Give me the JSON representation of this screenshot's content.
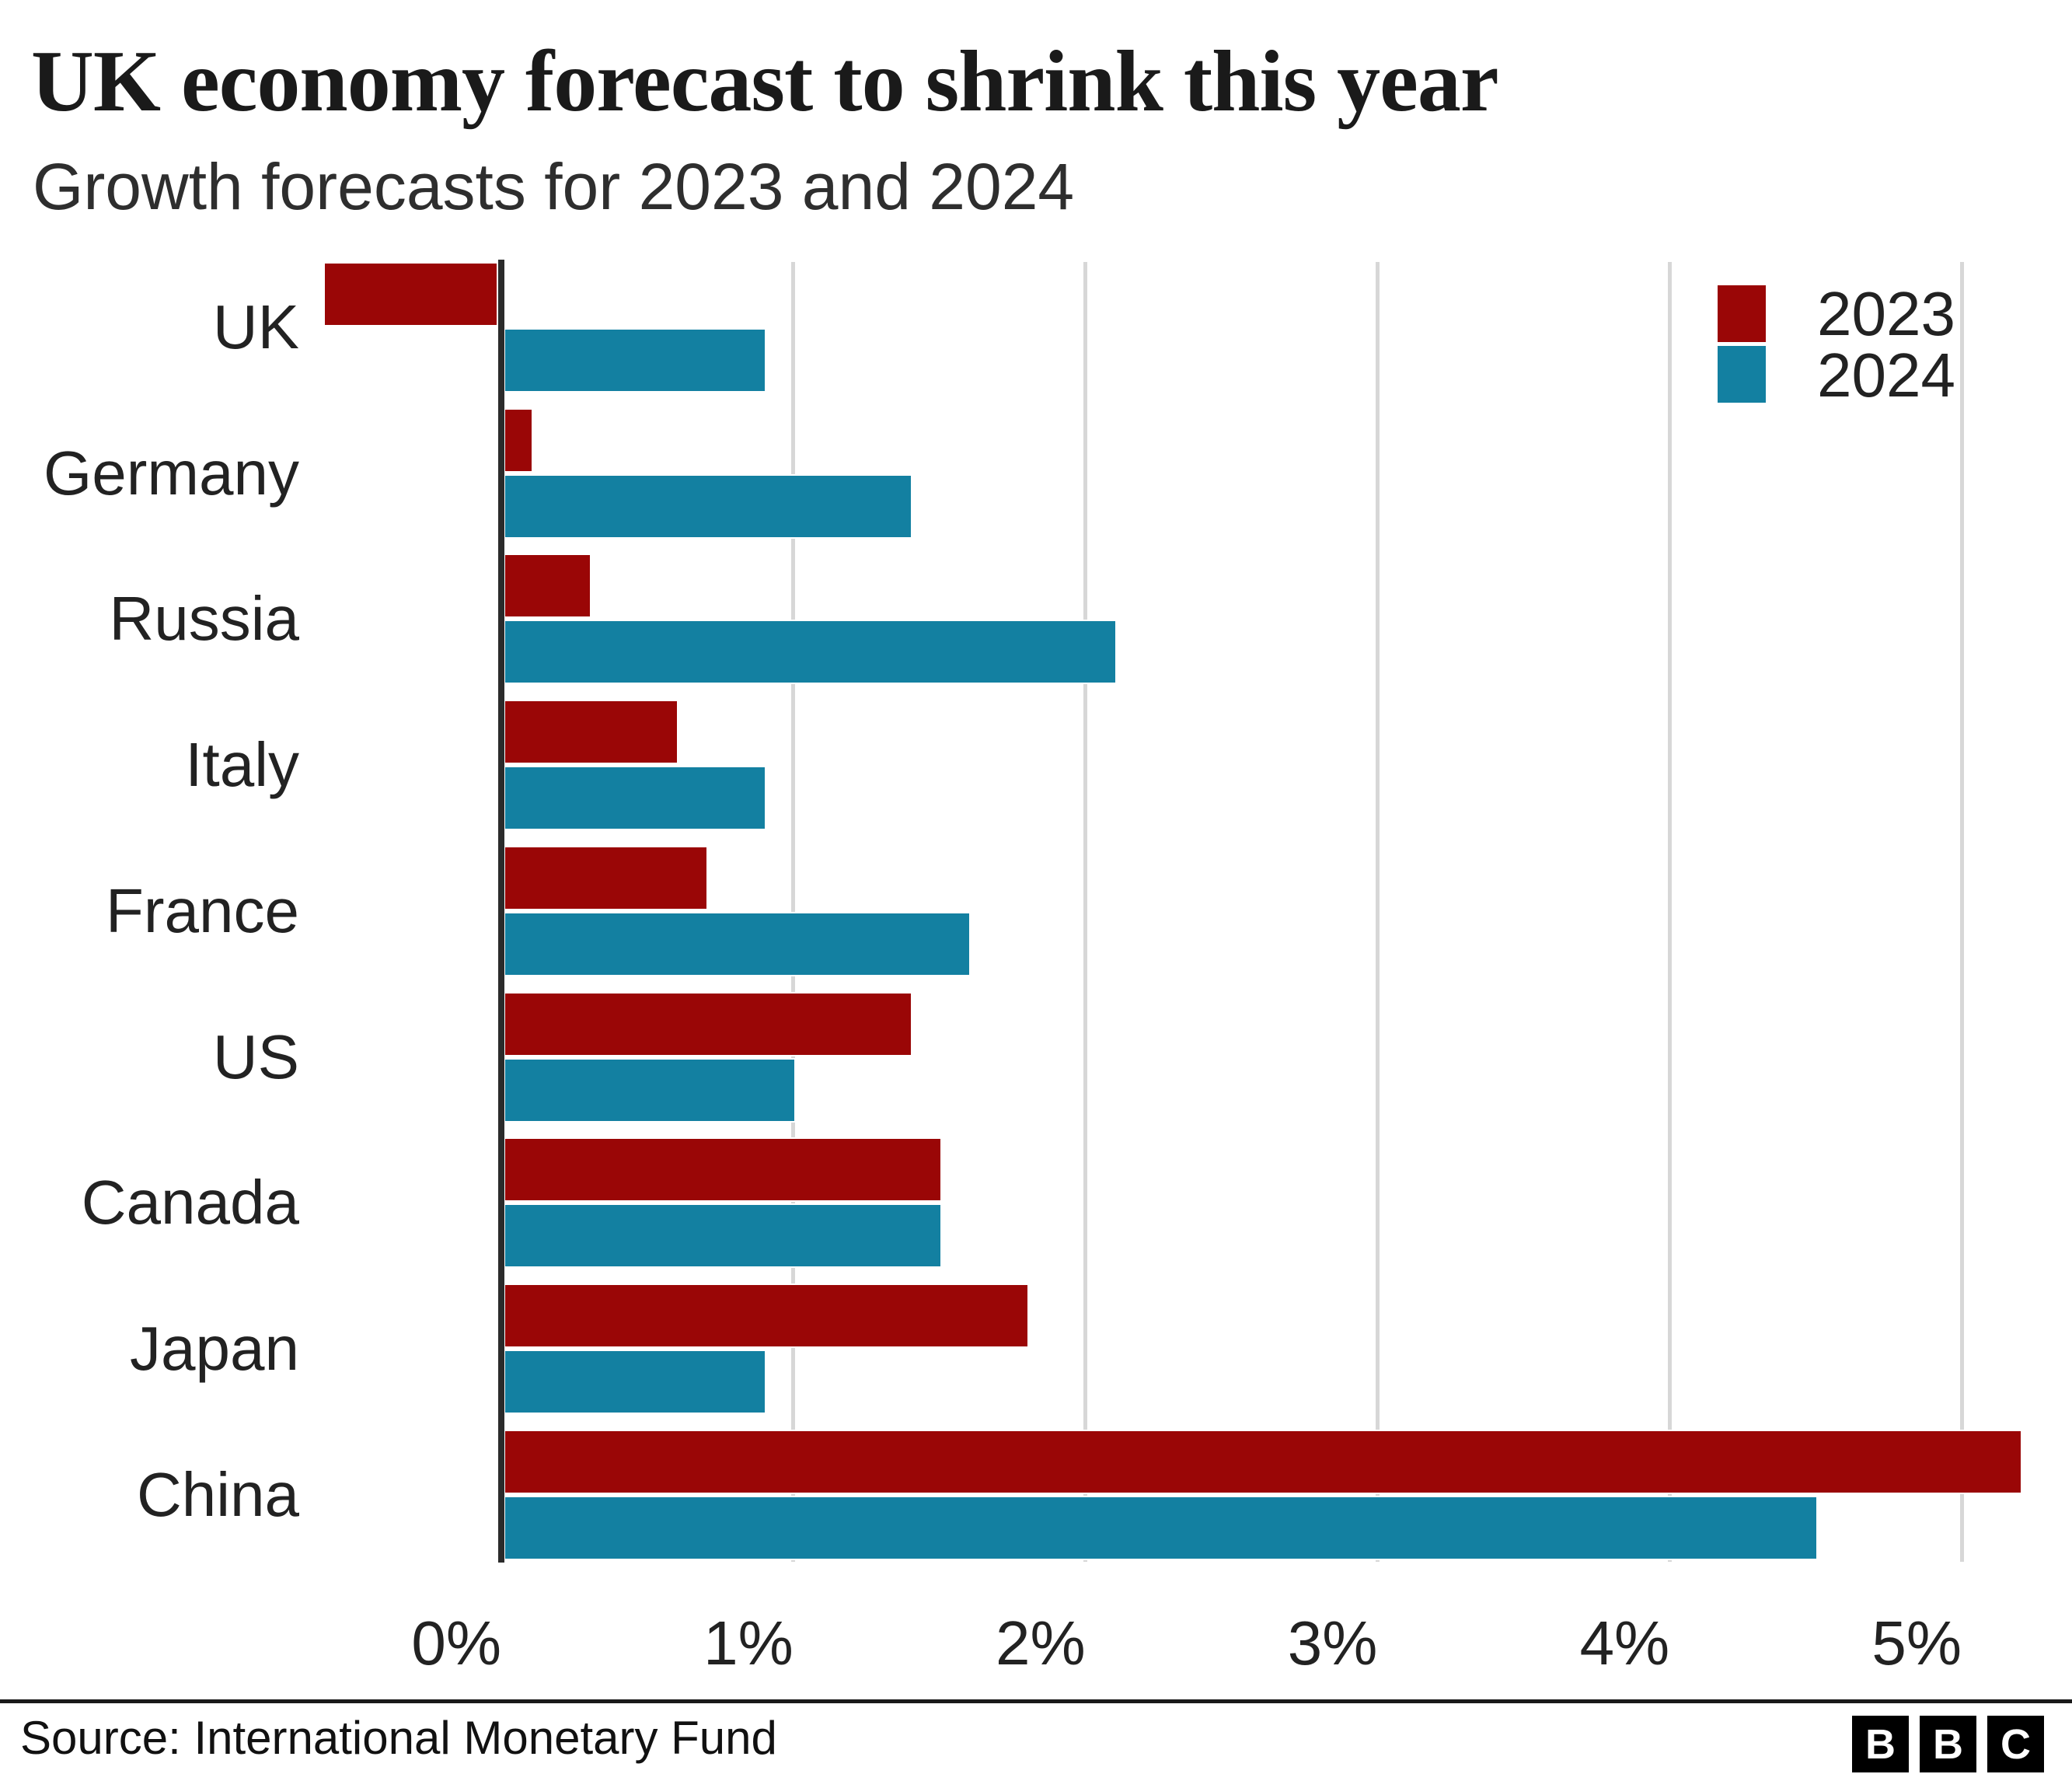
{
  "title": "UK economy forecast to shrink this year",
  "subtitle": "Growth forecasts for 2023 and 2024",
  "footer": {
    "source": "Source: International Monetary Fund",
    "logo_letters": [
      "B",
      "B",
      "C"
    ]
  },
  "colors": {
    "series_2023": "#9a0606",
    "series_2024": "#1380a1",
    "gridline": "#d7d7d7",
    "axis": "#2b2b2b",
    "text": "#222222"
  },
  "chart_data": {
    "type": "bar",
    "orientation": "horizontal",
    "title": "UK economy forecast to shrink this year",
    "subtitle": "Growth forecasts for 2023 and 2024",
    "categories": [
      "UK",
      "Germany",
      "Russia",
      "Italy",
      "France",
      "US",
      "Canada",
      "Japan",
      "China"
    ],
    "series": [
      {
        "name": "2023",
        "color": "#9a0606",
        "values": [
          -0.6,
          0.1,
          0.3,
          0.6,
          0.7,
          1.4,
          1.5,
          1.8,
          5.2
        ]
      },
      {
        "name": "2024",
        "color": "#1380a1",
        "values": [
          0.9,
          1.4,
          2.1,
          0.9,
          1.6,
          1.0,
          1.5,
          0.9,
          4.5
        ]
      }
    ],
    "value_unit": "%",
    "x_ticks": [
      {
        "label": "0%",
        "value": 0
      },
      {
        "label": "1%",
        "value": 1
      },
      {
        "label": "2%",
        "value": 2
      },
      {
        "label": "3%",
        "value": 3
      },
      {
        "label": "4%",
        "value": 4
      },
      {
        "label": "5%",
        "value": 5
      }
    ],
    "xlim": [
      -0.65,
      5.35
    ],
    "grid": true,
    "legend_position": "top-right"
  }
}
